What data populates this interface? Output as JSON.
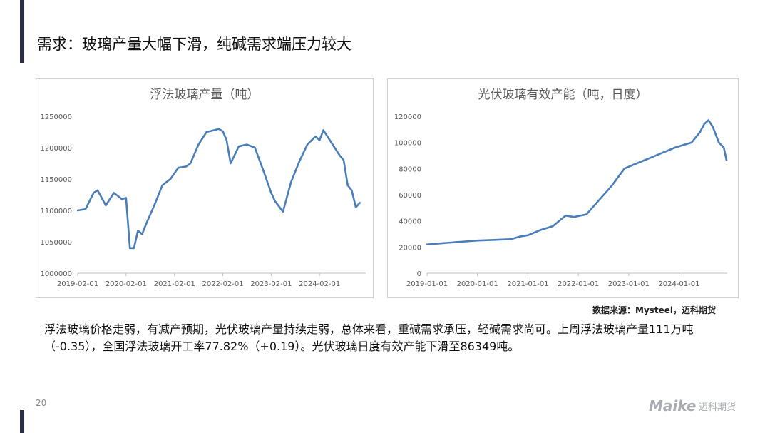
{
  "slide": {
    "title": "需求：玻璃产量大幅下滑，纯碱需求端压力较大",
    "source": "数据来源：Mysteel，迈科期货",
    "summary": "浮法玻璃价格走弱，有减产预期，光伏玻璃产量持续走弱，总体来看，重碱需求承压，轻碱需求尚可。上周浮法玻璃产量111万吨（-0.35），全国浮法玻璃开工率77.82%（+0.19）。光伏玻璃日度有效产能下滑至86349吨。",
    "page_number": "20"
  },
  "logo": {
    "brand": "Maike",
    "cn": "迈科期货",
    "color": "#a9adb3"
  },
  "colors": {
    "series_line": "#4a7ebb",
    "accent": "#2b2f45",
    "axis": "#bfbfbf"
  },
  "chart_data": [
    {
      "type": "line",
      "title": "浮法玻璃产量（吨）",
      "ylim": [
        1000000,
        1250000
      ],
      "yticks": [
        1000000,
        1050000,
        1100000,
        1150000,
        1200000,
        1250000
      ],
      "xlim": [
        "2019-02-01",
        "2025-01-15"
      ],
      "xticks": [
        "2019-02-01",
        "2020-02-01",
        "2021-02-01",
        "2022-02-01",
        "2023-02-01",
        "2024-02-01"
      ],
      "grid": false,
      "x": [
        "2019-02-01",
        "2019-04-01",
        "2019-06-01",
        "2019-07-01",
        "2019-09-01",
        "2019-11-01",
        "2020-01-01",
        "2020-02-01",
        "2020-03-01",
        "2020-04-01",
        "2020-05-01",
        "2020-06-01",
        "2020-07-01",
        "2020-09-01",
        "2020-11-01",
        "2021-01-01",
        "2021-03-01",
        "2021-05-01",
        "2021-06-01",
        "2021-08-01",
        "2021-10-01",
        "2021-12-01",
        "2022-01-01",
        "2022-02-01",
        "2022-03-01",
        "2022-04-01",
        "2022-06-01",
        "2022-08-01",
        "2022-10-01",
        "2022-12-01",
        "2023-02-01",
        "2023-03-01",
        "2023-05-01",
        "2023-07-01",
        "2023-09-01",
        "2023-11-01",
        "2024-01-01",
        "2024-02-01",
        "2024-03-01",
        "2024-05-01",
        "2024-07-01",
        "2024-08-01",
        "2024-09-01",
        "2024-10-01",
        "2024-11-01",
        "2024-12-01"
      ],
      "series": [
        {
          "values": [
            1100000,
            1102000,
            1128000,
            1132000,
            1108000,
            1128000,
            1118000,
            1120000,
            1040000,
            1040000,
            1068000,
            1062000,
            1078000,
            1108000,
            1140000,
            1150000,
            1168000,
            1170000,
            1175000,
            1205000,
            1225000,
            1228000,
            1230000,
            1226000,
            1212000,
            1175000,
            1202000,
            1205000,
            1200000,
            1165000,
            1128000,
            1115000,
            1098000,
            1145000,
            1178000,
            1205000,
            1218000,
            1212000,
            1228000,
            1208000,
            1188000,
            1180000,
            1140000,
            1132000,
            1105000,
            1112000
          ]
        }
      ]
    },
    {
      "type": "line",
      "title": "光伏玻璃有效产能（吨，日度）",
      "ylim": [
        0,
        120000
      ],
      "yticks": [
        0,
        20000,
        40000,
        60000,
        80000,
        100000,
        120000
      ],
      "xlim": [
        "2019-01-01",
        "2024-12-15"
      ],
      "xticks": [
        "2019-01-01",
        "2020-01-01",
        "2021-01-01",
        "2022-01-01",
        "2023-01-01",
        "2024-01-01"
      ],
      "grid": false,
      "x": [
        "2019-01-01",
        "2019-05-01",
        "2019-09-01",
        "2020-01-01",
        "2020-05-01",
        "2020-09-01",
        "2020-11-01",
        "2021-01-01",
        "2021-04-01",
        "2021-07-01",
        "2021-10-01",
        "2021-12-01",
        "2022-03-01",
        "2022-06-01",
        "2022-09-01",
        "2022-12-01",
        "2023-03-01",
        "2023-06-01",
        "2023-09-01",
        "2023-12-01",
        "2024-02-01",
        "2024-04-01",
        "2024-06-01",
        "2024-07-01",
        "2024-08-01",
        "2024-09-01",
        "2024-10-15",
        "2024-11-20",
        "2024-12-10"
      ],
      "series": [
        {
          "values": [
            22000,
            23000,
            24000,
            25000,
            25500,
            26000,
            28000,
            29000,
            33000,
            36000,
            44000,
            43000,
            45000,
            56000,
            67000,
            80000,
            84000,
            88000,
            92000,
            96000,
            98000,
            100000,
            108000,
            114000,
            117000,
            112000,
            100000,
            96000,
            86349
          ]
        }
      ]
    }
  ]
}
